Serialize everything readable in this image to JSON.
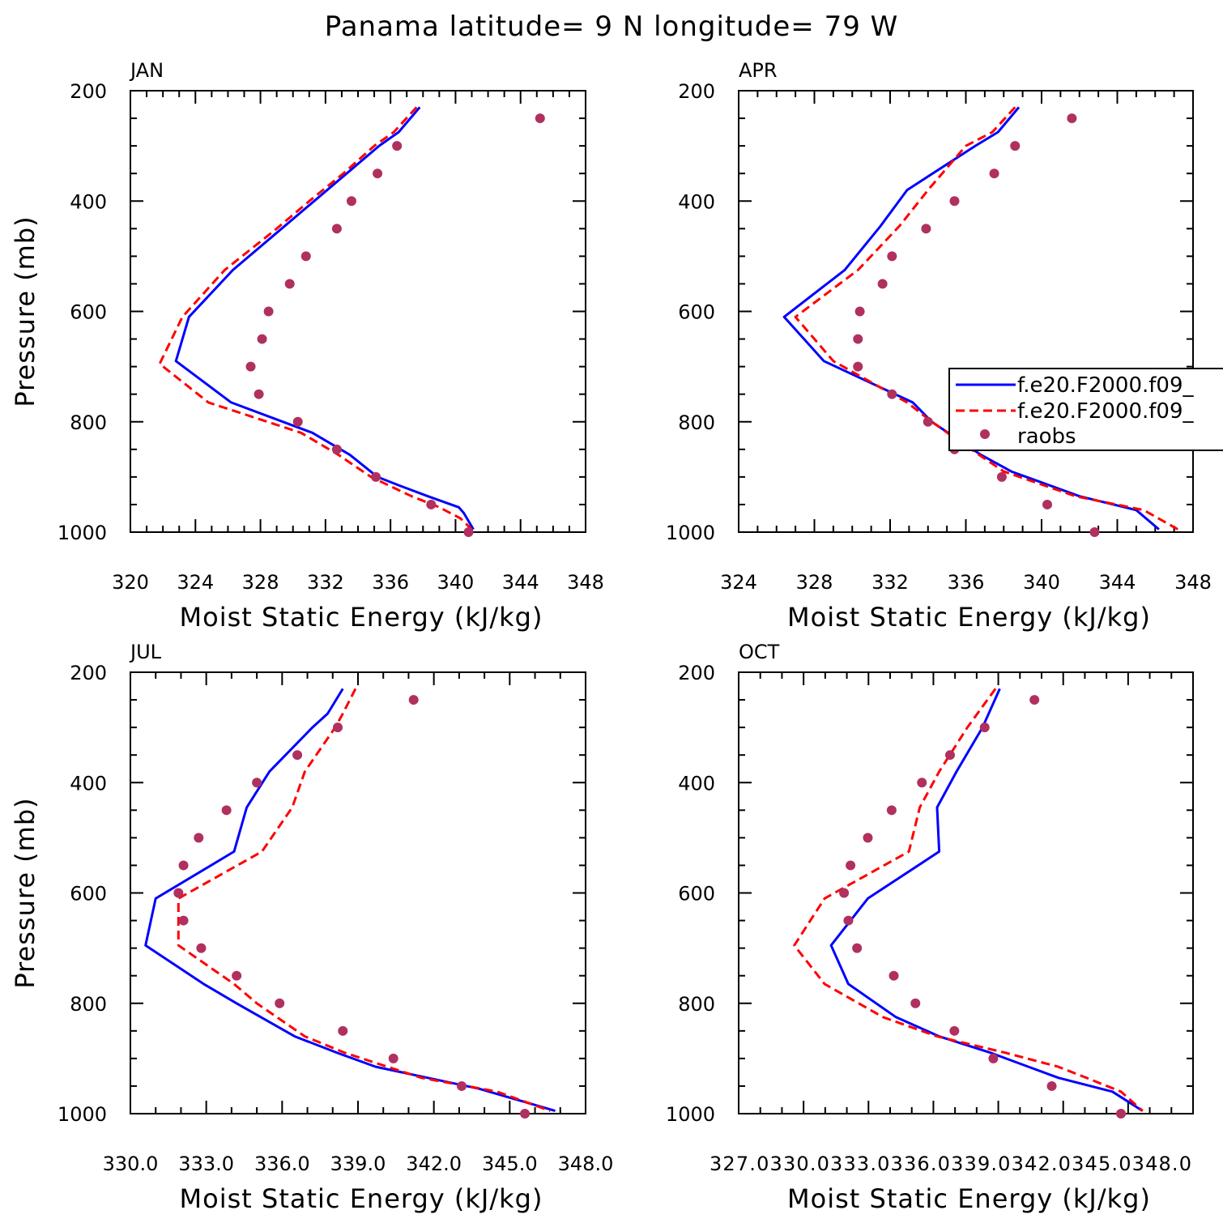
{
  "title": "Panama  latitude= 9 N longitude= 79 W",
  "colors": {
    "model1": "#0000ff",
    "model2": "#ff0000",
    "obs": "#b03060",
    "frame": "#000000"
  },
  "legend": {
    "entries": [
      "f.e20.F2000.f09_",
      "f.e20.F2000.f09_",
      "raobs"
    ],
    "panel": "APR",
    "placement": "right, clipped at figure edge"
  },
  "chart_data": [
    {
      "type": "line",
      "panel": "JAN",
      "xlabel": "Moist Static Energy (kJ/kg)",
      "ylabel": "Pressure (mb)",
      "xlim": [
        320,
        348
      ],
      "ylim": [
        1000,
        200
      ],
      "x_major_ticks": [
        320,
        324,
        328,
        332,
        336,
        340,
        344,
        348
      ],
      "x_minor_step": 1,
      "x_tick_labels": [
        "320",
        "324",
        "328",
        "332",
        "336",
        "340",
        "344",
        "348"
      ],
      "y_major_ticks": [
        200,
        400,
        600,
        800,
        1000
      ],
      "y_minor_step": 50,
      "y_tick_labels": [
        "200",
        "400",
        "600",
        "800",
        "1000"
      ],
      "series": [
        {
          "name": "f.e20.F2000.f09_",
          "style": "solid",
          "pressure": [
            230,
            275,
            300,
            350,
            400,
            450,
            525,
            610,
            690,
            765,
            820,
            860,
            900,
            915,
            935,
            955,
            965,
            985,
            995
          ],
          "values": [
            337.8,
            336.5,
            335.3,
            333.3,
            331.3,
            329.3,
            326.3,
            323.6,
            322.8,
            326.2,
            331.2,
            333.5,
            335.2,
            336.5,
            338.3,
            340.2,
            340.5,
            340.9,
            341.1
          ]
        },
        {
          "name": "f.e20.F2000.f09_",
          "style": "dashed",
          "pressure": [
            230,
            275,
            300,
            350,
            400,
            450,
            525,
            610,
            695,
            765,
            820,
            860,
            900,
            935,
            955,
            975,
            995
          ],
          "values": [
            337.6,
            336.2,
            335.0,
            333.1,
            331.0,
            329.0,
            325.8,
            323.2,
            321.8,
            324.8,
            330.5,
            332.8,
            334.8,
            337.3,
            339.0,
            340.3,
            341.0
          ]
        },
        {
          "name": "raobs",
          "style": "markers",
          "pressure": [
            250,
            300,
            350,
            400,
            450,
            500,
            550,
            600,
            650,
            700,
            750,
            800,
            850,
            900,
            950,
            1000
          ],
          "values": [
            345.2,
            336.4,
            335.2,
            333.6,
            332.7,
            330.8,
            329.8,
            328.5,
            328.1,
            327.4,
            327.9,
            330.3,
            332.7,
            335.1,
            338.5,
            340.8
          ]
        }
      ]
    },
    {
      "type": "line",
      "panel": "APR",
      "xlabel": "Moist Static Energy (kJ/kg)",
      "ylabel": "",
      "xlim": [
        324,
        348
      ],
      "ylim": [
        1000,
        200
      ],
      "x_major_ticks": [
        324,
        328,
        332,
        336,
        340,
        344,
        348
      ],
      "x_minor_step": 1,
      "x_tick_labels": [
        "324",
        "328",
        "332",
        "336",
        "340",
        "344",
        "348"
      ],
      "y_major_ticks": [
        200,
        400,
        600,
        800,
        1000
      ],
      "y_minor_step": 50,
      "y_tick_labels": [
        "200",
        "400",
        "600",
        "800",
        "1000"
      ],
      "series": [
        {
          "name": "f.e20.F2000.f09_",
          "style": "solid",
          "pressure": [
            230,
            275,
            300,
            380,
            445,
            525,
            610,
            690,
            765,
            800,
            860,
            890,
            935,
            960,
            995
          ],
          "values": [
            338.8,
            337.7,
            336.5,
            332.9,
            331.5,
            329.6,
            326.4,
            328.5,
            333.2,
            334.2,
            336.8,
            338.4,
            342.0,
            345.0,
            346.2
          ]
        },
        {
          "name": "f.e20.F2000.f09_",
          "style": "dashed",
          "pressure": [
            230,
            275,
            300,
            380,
            445,
            525,
            610,
            690,
            765,
            800,
            860,
            890,
            935,
            960,
            995
          ],
          "values": [
            338.6,
            337.4,
            336.0,
            334.0,
            332.5,
            330.3,
            327.0,
            329.0,
            332.9,
            334.2,
            336.7,
            338.0,
            341.8,
            345.4,
            347.2
          ]
        },
        {
          "name": "raobs",
          "style": "markers",
          "pressure": [
            250,
            300,
            350,
            400,
            450,
            500,
            550,
            600,
            650,
            700,
            750,
            800,
            850,
            900,
            950,
            1000
          ],
          "values": [
            341.6,
            338.6,
            337.5,
            335.4,
            333.9,
            332.1,
            331.6,
            330.4,
            330.3,
            330.3,
            332.1,
            334.0,
            335.4,
            337.9,
            340.3,
            342.8
          ]
        }
      ]
    },
    {
      "type": "line",
      "panel": "JUL",
      "xlabel": "Moist Static Energy (kJ/kg)",
      "ylabel": "Pressure (mb)",
      "xlim": [
        330,
        348
      ],
      "ylim": [
        1000,
        200
      ],
      "x_major_ticks": [
        330,
        333,
        336,
        339,
        342,
        345,
        348
      ],
      "x_minor_step": 1,
      "x_tick_labels": [
        "330.0",
        "333.0",
        "336.0",
        "339.0",
        "342.0",
        "345.0",
        "348.0"
      ],
      "y_major_ticks": [
        200,
        400,
        600,
        800,
        1000
      ],
      "y_minor_step": 50,
      "y_tick_labels": [
        "200",
        "400",
        "600",
        "800",
        "1000"
      ],
      "series": [
        {
          "name": "f.e20.F2000.f09_",
          "style": "solid",
          "pressure": [
            230,
            275,
            300,
            380,
            445,
            525,
            610,
            695,
            765,
            800,
            860,
            890,
            915,
            955,
            995
          ],
          "values": [
            338.4,
            337.8,
            337.2,
            335.5,
            334.6,
            334.1,
            331.0,
            330.6,
            332.9,
            334.2,
            336.5,
            338.2,
            339.7,
            343.8,
            346.8
          ]
        },
        {
          "name": "f.e20.F2000.f09_",
          "style": "dashed",
          "pressure": [
            230,
            275,
            300,
            380,
            445,
            525,
            610,
            695,
            765,
            800,
            860,
            890,
            935,
            960,
            995
          ],
          "values": [
            338.9,
            338.4,
            338.1,
            336.9,
            336.4,
            335.2,
            331.9,
            331.9,
            334.1,
            335.0,
            336.9,
            338.5,
            341.5,
            344.5,
            346.6
          ]
        },
        {
          "name": "raobs",
          "style": "markers",
          "pressure": [
            250,
            300,
            350,
            400,
            450,
            500,
            550,
            600,
            650,
            700,
            750,
            800,
            850,
            900,
            950,
            1000
          ],
          "values": [
            341.2,
            338.2,
            336.6,
            335.0,
            333.8,
            332.7,
            332.1,
            331.9,
            332.1,
            332.8,
            334.2,
            335.9,
            338.4,
            340.4,
            343.1,
            345.6
          ]
        }
      ]
    },
    {
      "type": "line",
      "panel": "OCT",
      "xlabel": "Moist Static Energy (kJ/kg)",
      "ylabel": "",
      "xlim": [
        327.03,
        348.03
      ],
      "ylim": [
        1000,
        200
      ],
      "x_major_ticks": [
        327.03,
        330.03,
        333.03,
        336.03,
        339.03,
        342.03,
        345.03,
        348.03
      ],
      "x_minor_step": 1,
      "x_tick_labels": [
        "327.0",
        "330.0",
        "333.0",
        "336.0",
        "339.0",
        "342.0",
        "345.0",
        "348.0"
      ],
      "x_tick_labels_render": "327.0330.0333.0336.0339.0342.0345.0348.0",
      "y_major_ticks": [
        200,
        400,
        600,
        800,
        1000
      ],
      "y_minor_step": 50,
      "y_tick_labels": [
        "200",
        "400",
        "600",
        "800",
        "1000"
      ],
      "series": [
        {
          "name": "f.e20.F2000.f09_",
          "style": "solid",
          "pressure": [
            230,
            300,
            380,
            445,
            525,
            610,
            695,
            765,
            825,
            860,
            890,
            935,
            960,
            995
          ],
          "values": [
            339.1,
            338.3,
            337.1,
            336.2,
            336.3,
            333.0,
            331.3,
            332.1,
            334.3,
            336.3,
            338.7,
            341.8,
            344.3,
            345.7
          ]
        },
        {
          "name": "f.e20.F2000.f09_",
          "style": "dashed",
          "pressure": [
            230,
            300,
            380,
            445,
            525,
            610,
            695,
            765,
            825,
            860,
            890,
            915,
            935,
            960,
            995
          ],
          "values": [
            338.9,
            337.6,
            336.3,
            335.4,
            334.9,
            331.0,
            329.6,
            331.0,
            333.7,
            336.2,
            339.4,
            341.8,
            343.1,
            344.7,
            345.7
          ]
        },
        {
          "name": "raobs",
          "style": "markers",
          "pressure": [
            250,
            300,
            350,
            400,
            450,
            500,
            550,
            600,
            650,
            700,
            750,
            800,
            850,
            900,
            950,
            1000
          ],
          "values": [
            340.7,
            338.4,
            336.8,
            335.5,
            334.1,
            333.0,
            332.2,
            331.9,
            332.1,
            332.5,
            334.2,
            335.2,
            337.0,
            338.8,
            341.5,
            344.7
          ]
        }
      ]
    }
  ]
}
